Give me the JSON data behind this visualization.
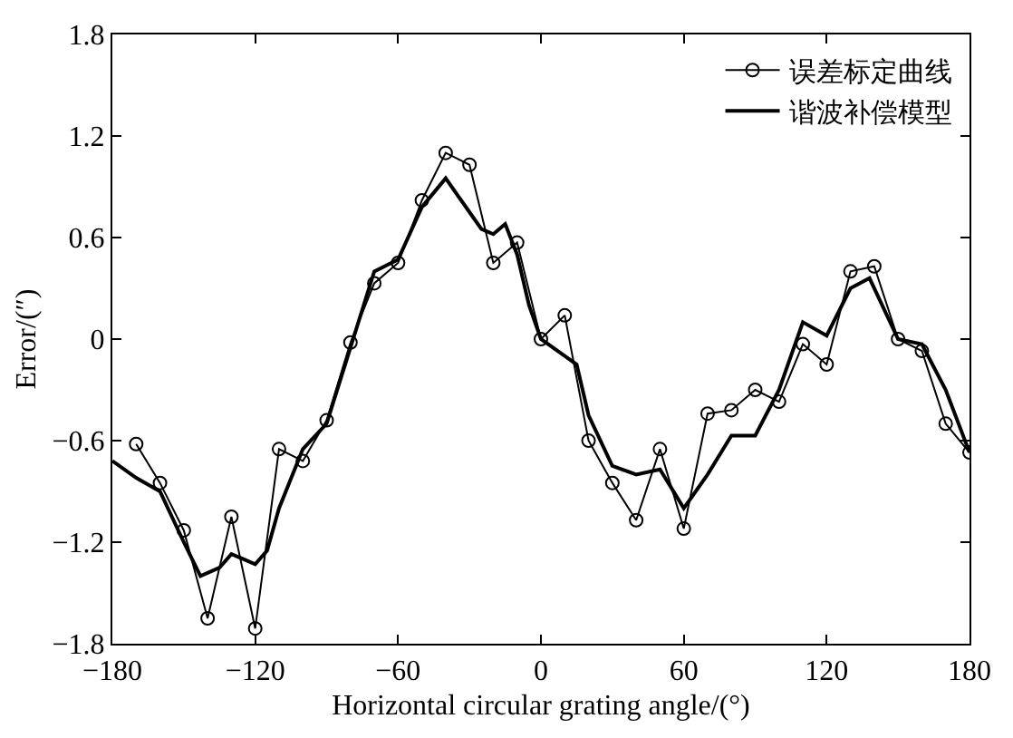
{
  "chart_data": {
    "type": "line",
    "xlabel": "Horizontal circular grating angle/(°)",
    "ylabel": "Error/(″)",
    "xlim": [
      -180,
      180
    ],
    "xticks": [
      -180,
      -120,
      -60,
      0,
      60,
      120,
      180
    ],
    "ylim": [
      -1.8,
      1.8
    ],
    "yticks": [
      -1.8,
      -1.2,
      -0.6,
      0,
      0.6,
      1.2,
      1.8
    ],
    "grid": false,
    "legend": "top right",
    "series": [
      {
        "name": "误差标定曲线",
        "color": "#000000",
        "marker": "circle",
        "x": [
          -170,
          -160,
          -150,
          -140,
          -130,
          -120,
          -110,
          -100,
          -90,
          -80,
          -70,
          -60,
          -50,
          -40,
          -30,
          -20,
          -10,
          0,
          10,
          20,
          30,
          40,
          50,
          60,
          70,
          80,
          90,
          100,
          110,
          120,
          130,
          140,
          150,
          160,
          170,
          180
        ],
        "values": [
          -0.62,
          -0.85,
          -1.13,
          -1.65,
          -1.05,
          -1.71,
          -0.65,
          -0.72,
          -0.48,
          -0.02,
          0.33,
          0.45,
          0.82,
          1.1,
          1.03,
          0.45,
          0.57,
          0,
          0.14,
          -0.6,
          -0.85,
          -1.07,
          -0.65,
          -1.12,
          -0.44,
          -0.42,
          -0.3,
          -0.37,
          -0.03,
          -0.15,
          0.4,
          0.43,
          0,
          -0.07,
          -0.5,
          -0.67
        ]
      },
      {
        "name": "谐波补偿模型",
        "color": "#000000",
        "marker": "none",
        "x": [
          -180,
          -170,
          -160,
          -150,
          -143,
          -135,
          -130,
          -125,
          -120,
          -115,
          -110,
          -100,
          -90,
          -80,
          -70,
          -60,
          -50,
          -40,
          -30,
          -25,
          -20,
          -15,
          -10,
          -5,
          0,
          10,
          15,
          20,
          30,
          40,
          50,
          60,
          70,
          80,
          90,
          100,
          110,
          120,
          130,
          138,
          150,
          160,
          170,
          180
        ],
        "values": [
          -0.72,
          -0.82,
          -0.9,
          -1.2,
          -1.4,
          -1.35,
          -1.27,
          -1.3,
          -1.33,
          -1.25,
          -1.0,
          -0.65,
          -0.5,
          -0.05,
          0.4,
          0.47,
          0.78,
          0.95,
          0.75,
          0.65,
          0.62,
          0.68,
          0.5,
          0.2,
          0,
          -0.1,
          -0.15,
          -0.45,
          -0.75,
          -0.8,
          -0.77,
          -1.0,
          -0.8,
          -0.57,
          -0.57,
          -0.3,
          0.1,
          0.02,
          0.3,
          0.36,
          0,
          -0.03,
          -0.3,
          -0.67
        ]
      }
    ]
  }
}
